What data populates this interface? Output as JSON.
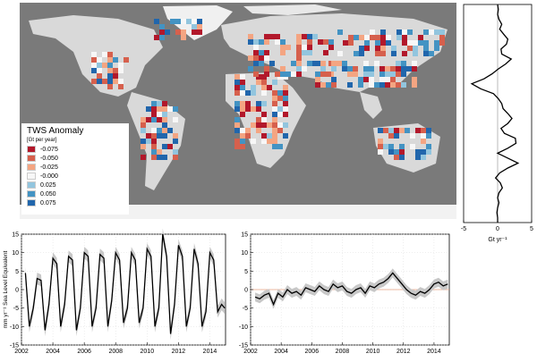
{
  "map": {
    "legend": {
      "title": "TWS Anomaly",
      "units": "[Gt per year]",
      "entries": [
        {
          "label": "-0.075",
          "color": "#b2182b"
        },
        {
          "label": "-0.050",
          "color": "#d6604d"
        },
        {
          "label": "-0.025",
          "color": "#f4a582"
        },
        {
          "label": "-0.000",
          "color": "#f7f7f7"
        },
        {
          "label": "0.025",
          "color": "#92c5de"
        },
        {
          "label": "0.050",
          "color": "#4393c3"
        },
        {
          "label": "0.075",
          "color": "#2166ac"
        }
      ]
    }
  },
  "chart_data": [
    {
      "type": "line",
      "panel": "latitudinal-profile",
      "xlabel": "Gt yr⁻¹",
      "xlim": [
        -5,
        5
      ],
      "xticks": [
        "-5",
        "0",
        "5"
      ],
      "profile_x": [
        0,
        0.1,
        0,
        0.2,
        0.6,
        0.3,
        0.9,
        1.5,
        1.3,
        0.5,
        0.6,
        2.0,
        1.2,
        0.1,
        -0.8,
        -2.0,
        -3.8,
        -2.5,
        -0.6,
        0.1,
        0.6,
        0.8,
        1.5,
        2.1,
        1.5,
        0.5,
        1.0,
        2.6,
        2.7,
        1.5,
        0.0,
        1.5,
        3.0,
        1.5,
        0.3,
        -0.3,
        0.4,
        0.7,
        0.2,
        0.0,
        0.2,
        0.0,
        -0.1,
        0.0,
        0.0
      ],
      "line_color": "#000000"
    },
    {
      "type": "line",
      "panel": "seasonal-sea-level",
      "ylabel": "mm yr⁻¹ Sea Level Equivalent",
      "xlim": [
        2002,
        2015
      ],
      "ylim": [
        -15,
        15
      ],
      "xticks": [
        "2002",
        "2004",
        "2006",
        "2008",
        "2010",
        "2012",
        "2014"
      ],
      "yticks": [
        "-15",
        "-10",
        "-5",
        "0",
        "5",
        "10",
        "15"
      ],
      "x": [
        2002.25,
        2002.5,
        2002.75,
        2003.0,
        2003.25,
        2003.5,
        2003.75,
        2004.0,
        2004.25,
        2004.5,
        2004.75,
        2005.0,
        2005.25,
        2005.5,
        2005.75,
        2006.0,
        2006.25,
        2006.5,
        2006.75,
        2007.0,
        2007.25,
        2007.5,
        2007.75,
        2008.0,
        2008.25,
        2008.5,
        2008.75,
        2009.0,
        2009.25,
        2009.5,
        2009.75,
        2010.0,
        2010.25,
        2010.5,
        2010.75,
        2011.0,
        2011.25,
        2011.5,
        2011.75,
        2012.0,
        2012.25,
        2012.5,
        2012.75,
        2013.0,
        2013.25,
        2013.5,
        2013.75,
        2014.0,
        2014.25,
        2014.5,
        2014.75,
        2014.95
      ],
      "y": [
        4.5,
        -10,
        -5,
        3,
        2.5,
        -11,
        -4,
        8.5,
        7,
        -10,
        -4,
        9,
        8,
        -11,
        -5,
        10,
        9,
        -10,
        -5,
        9.5,
        8.5,
        -10,
        -3,
        10,
        8,
        -9,
        -5,
        10,
        8,
        -9,
        -5,
        11,
        9,
        -10,
        -5,
        15,
        9,
        -12,
        -4,
        12,
        9,
        -10,
        -5,
        11,
        7,
        -10,
        -6,
        10,
        8,
        -6,
        -4,
        -5
      ],
      "band": 1.6,
      "line_color": "#000000",
      "band_color": "#c8c8c8"
    },
    {
      "type": "line",
      "panel": "interannual-sea-level",
      "xlim": [
        2002,
        2015
      ],
      "ylim": [
        -15,
        15
      ],
      "xticks": [
        "2002",
        "2004",
        "2006",
        "2008",
        "2010",
        "2012",
        "2014"
      ],
      "yticks": [
        "-15",
        "-10",
        "-5",
        "0",
        "5",
        "10",
        "15"
      ],
      "x": [
        2002.3,
        2002.6,
        2002.9,
        2003.2,
        2003.5,
        2003.8,
        2004.1,
        2004.4,
        2004.7,
        2005.0,
        2005.3,
        2005.6,
        2005.9,
        2006.2,
        2006.5,
        2006.8,
        2007.1,
        2007.4,
        2007.7,
        2008.0,
        2008.3,
        2008.6,
        2008.9,
        2009.2,
        2009.5,
        2009.8,
        2010.1,
        2010.4,
        2010.7,
        2011.0,
        2011.3,
        2011.6,
        2011.9,
        2012.2,
        2012.5,
        2012.8,
        2013.1,
        2013.4,
        2013.7,
        2014.0,
        2014.3,
        2014.6,
        2014.9
      ],
      "y": [
        -2,
        -2.5,
        -1.5,
        -1,
        -4,
        -1,
        -2,
        0,
        -1,
        -0.5,
        -1.5,
        0.5,
        0,
        -0.5,
        1,
        0,
        -0.5,
        1.5,
        0.5,
        1,
        -0.5,
        -1,
        0,
        0.5,
        -1,
        1,
        0.5,
        1.5,
        2,
        3,
        4.5,
        3,
        1.5,
        0,
        -1,
        -1.5,
        -0.5,
        -1,
        0,
        1.5,
        2,
        1,
        1.5
      ],
      "band": 1.2,
      "zero_line_color": "#e8a080",
      "line_color": "#000000",
      "band_color": "#c8c8c8"
    }
  ]
}
